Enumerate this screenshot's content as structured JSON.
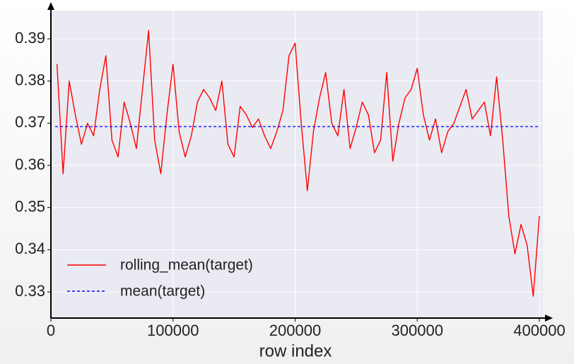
{
  "chart_data": {
    "type": "line",
    "xlabel": "row index",
    "xlim": [
      0,
      402900
    ],
    "ylim": [
      0.3238,
      0.3967
    ],
    "xticks": [
      0,
      100000,
      200000,
      300000,
      400000
    ],
    "yticks": [
      0.33,
      0.34,
      0.35,
      0.36,
      0.37,
      0.38,
      0.39
    ],
    "grid": true,
    "legend": "lower left",
    "series": [
      {
        "name": "rolling_mean(target)",
        "color": "#ff0000",
        "style": "solid",
        "x": [
          5000,
          10000,
          15000,
          20000,
          25000,
          30000,
          35000,
          40000,
          45000,
          50000,
          55000,
          60000,
          65000,
          70000,
          75000,
          80000,
          85000,
          90000,
          95000,
          100000,
          105000,
          110000,
          115000,
          120000,
          125000,
          130000,
          135000,
          140000,
          145000,
          150000,
          155000,
          160000,
          165000,
          170000,
          175000,
          180000,
          185000,
          190000,
          195000,
          200000,
          205000,
          210000,
          215000,
          220000,
          225000,
          230000,
          235000,
          240000,
          245000,
          250000,
          255000,
          260000,
          265000,
          270000,
          275000,
          280000,
          285000,
          290000,
          295000,
          300000,
          305000,
          310000,
          315000,
          320000,
          325000,
          330000,
          335000,
          340000,
          345000,
          350000,
          355000,
          360000,
          365000,
          370000,
          375000,
          380000,
          385000,
          390000,
          395000,
          400000
        ],
        "values": [
          0.384,
          0.358,
          0.38,
          0.372,
          0.365,
          0.37,
          0.367,
          0.378,
          0.386,
          0.366,
          0.362,
          0.375,
          0.37,
          0.364,
          0.378,
          0.392,
          0.366,
          0.358,
          0.372,
          0.384,
          0.368,
          0.362,
          0.367,
          0.375,
          0.378,
          0.376,
          0.373,
          0.38,
          0.365,
          0.362,
          0.374,
          0.372,
          0.369,
          0.371,
          0.367,
          0.364,
          0.368,
          0.373,
          0.386,
          0.389,
          0.37,
          0.354,
          0.368,
          0.376,
          0.382,
          0.37,
          0.367,
          0.378,
          0.364,
          0.369,
          0.375,
          0.372,
          0.363,
          0.366,
          0.382,
          0.361,
          0.37,
          0.376,
          0.378,
          0.383,
          0.372,
          0.366,
          0.371,
          0.363,
          0.368,
          0.37,
          0.374,
          0.378,
          0.371,
          0.373,
          0.375,
          0.367,
          0.381,
          0.366,
          0.348,
          0.339,
          0.346,
          0.341,
          0.329,
          0.348
        ]
      },
      {
        "name": "mean(target)",
        "color": "#0000ff",
        "style": "dashed",
        "x": [
          3500,
          400000
        ],
        "values": [
          0.3692,
          0.3692
        ]
      }
    ]
  }
}
